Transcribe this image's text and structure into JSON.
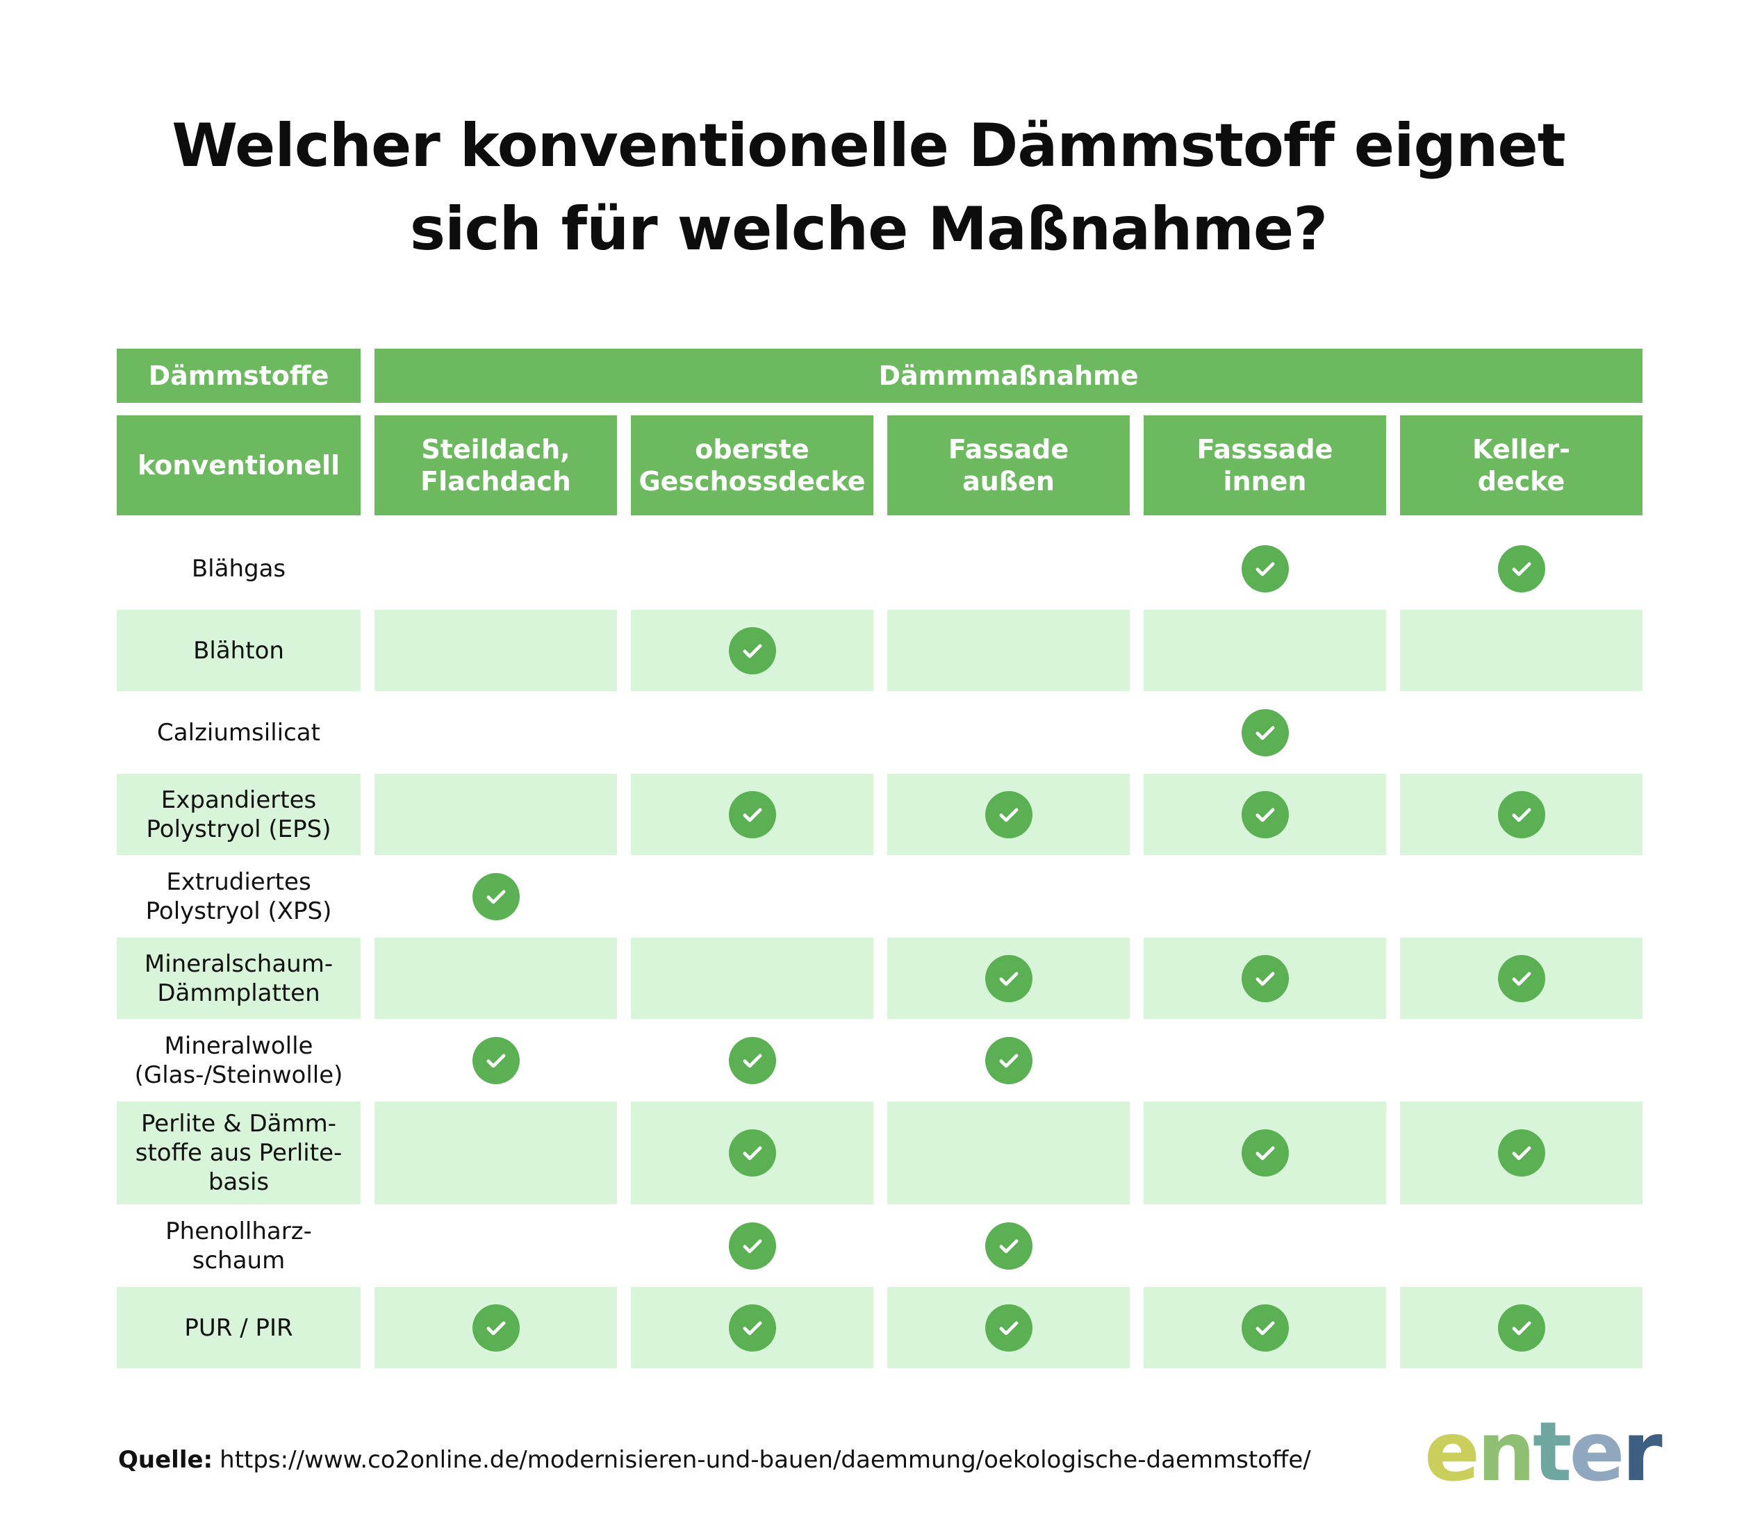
{
  "title": {
    "line1": "Welcher konventionelle Dämmstoff eignet",
    "line2": "sich für welche Maßnahme?"
  },
  "table": {
    "header_materials": "Dämmstoffe",
    "header_measures": "Dämmmaßnahme",
    "subheader_materials": "konventionell",
    "columns": [
      "Steildach,\nFlachdach",
      "oberste\nGeschossdecke",
      "Fassade\naußen",
      "Fasssade\ninnen",
      "Keller-\ndecke"
    ],
    "rows": [
      {
        "label": "Blähgas",
        "checks": [
          false,
          false,
          false,
          true,
          true
        ]
      },
      {
        "label": "Blähton",
        "checks": [
          false,
          true,
          false,
          false,
          false
        ]
      },
      {
        "label": "Calziumsilicat",
        "checks": [
          false,
          false,
          false,
          true,
          false
        ]
      },
      {
        "label": "Expandiertes\nPolystryol (EPS)",
        "checks": [
          false,
          true,
          true,
          true,
          true
        ]
      },
      {
        "label": "Extrudiertes\nPolystryol (XPS)",
        "checks": [
          true,
          false,
          false,
          false,
          false
        ]
      },
      {
        "label": "Mineralschaum-\nDämmplatten",
        "checks": [
          false,
          false,
          true,
          true,
          true
        ]
      },
      {
        "label": "Mineralwolle\n(Glas-/Steinwolle)",
        "checks": [
          true,
          true,
          true,
          false,
          false
        ]
      },
      {
        "label": "Perlite & Dämm-\nstoffe aus Perlite-\nbasis",
        "checks": [
          false,
          true,
          false,
          true,
          true
        ]
      },
      {
        "label": "Phenollharz-\nschaum",
        "checks": [
          false,
          true,
          true,
          false,
          false
        ]
      },
      {
        "label": "PUR / PIR",
        "checks": [
          true,
          true,
          true,
          true,
          true
        ]
      }
    ]
  },
  "source": {
    "label": "Quelle:",
    "url": "https://www.co2online.de/modernisieren-und-bauen/daemmung/oekologische-daemmstoffe/"
  },
  "logo": {
    "text": "enter",
    "colors": [
      "#c9cf5a",
      "#8fbf73",
      "#6fa7a0",
      "#8fa7bf",
      "#3f5f82"
    ]
  },
  "colors": {
    "header_green": "#6cb960",
    "row_shade": "#d9f5d9",
    "check_green": "#5bb054"
  },
  "icons": {
    "check": "check-circle-icon"
  }
}
